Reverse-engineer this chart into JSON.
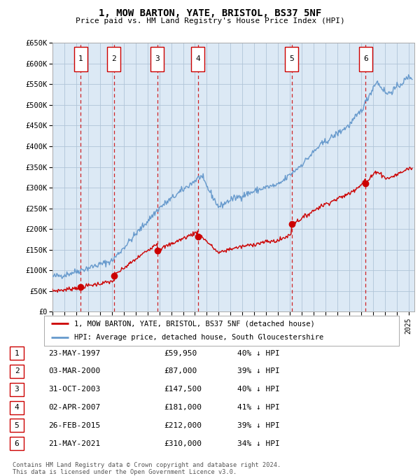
{
  "title": "1, MOW BARTON, YATE, BRISTOL, BS37 5NF",
  "subtitle": "Price paid vs. HM Land Registry's House Price Index (HPI)",
  "background_color": "#dce9f5",
  "ylim": [
    0,
    650000
  ],
  "yticks": [
    0,
    50000,
    100000,
    150000,
    200000,
    250000,
    300000,
    350000,
    400000,
    450000,
    500000,
    550000,
    600000,
    650000
  ],
  "ytick_labels": [
    "£0",
    "£50K",
    "£100K",
    "£150K",
    "£200K",
    "£250K",
    "£300K",
    "£350K",
    "£400K",
    "£450K",
    "£500K",
    "£550K",
    "£600K",
    "£650K"
  ],
  "xlim_start": 1995.0,
  "xlim_end": 2025.5,
  "sale_dates_x": [
    1997.388,
    2000.167,
    2003.831,
    2007.25,
    2015.15,
    2021.386
  ],
  "sale_prices_y": [
    59950,
    87000,
    147500,
    181000,
    212000,
    310000
  ],
  "sale_labels": [
    "1",
    "2",
    "3",
    "4",
    "5",
    "6"
  ],
  "sale_color": "#cc0000",
  "hpi_color": "#6699cc",
  "legend_label_sale": "1, MOW BARTON, YATE, BRISTOL, BS37 5NF (detached house)",
  "legend_label_hpi": "HPI: Average price, detached house, South Gloucestershire",
  "table_rows": [
    [
      "1",
      "23-MAY-1997",
      "£59,950",
      "40% ↓ HPI"
    ],
    [
      "2",
      "03-MAR-2000",
      "£87,000",
      "39% ↓ HPI"
    ],
    [
      "3",
      "31-OCT-2003",
      "£147,500",
      "40% ↓ HPI"
    ],
    [
      "4",
      "02-APR-2007",
      "£181,000",
      "41% ↓ HPI"
    ],
    [
      "5",
      "26-FEB-2015",
      "£212,000",
      "39% ↓ HPI"
    ],
    [
      "6",
      "21-MAY-2021",
      "£310,000",
      "34% ↓ HPI"
    ]
  ],
  "footer": "Contains HM Land Registry data © Crown copyright and database right 2024.\nThis data is licensed under the Open Government Licence v3.0.",
  "grid_color": "#b0c4d8",
  "dashed_line_color": "#cc0000"
}
